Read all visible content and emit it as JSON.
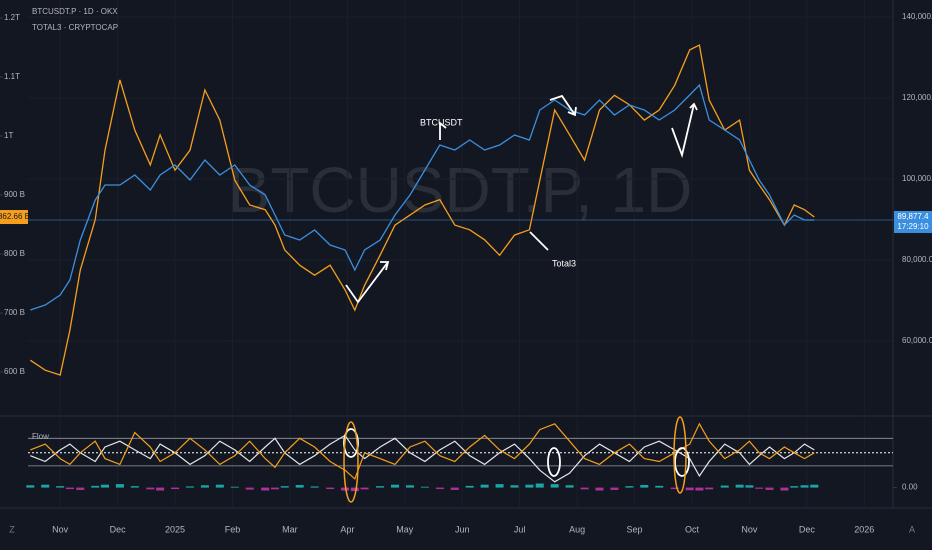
{
  "chart_data": {
    "type": "line",
    "watermark": "BTCUSDT.P, 1D",
    "annotations": [
      "BTCUSDT",
      "Total3"
    ],
    "x": [
      -0.52,
      -0.26,
      0,
      0.17,
      0.35,
      0.61,
      0.78,
      1.04,
      1.3,
      1.57,
      1.74,
      2,
      2.26,
      2.52,
      2.78,
      3.04,
      3.3,
      3.57,
      3.74,
      3.91,
      4.17,
      4.43,
      4.7,
      4.96,
      5.13,
      5.3,
      5.57,
      5.83,
      6.09,
      6.35,
      6.61,
      6.87,
      7.13,
      7.39,
      7.65,
      7.91,
      8.17,
      8.35,
      8.61,
      8.87,
      9.13,
      9.39,
      9.65,
      9.91,
      10.17,
      10.43,
      10.7,
      10.96,
      11.13,
      11.3,
      11.57,
      11.83,
      12,
      12.17,
      12.35,
      12.61,
      12.78,
      12.96,
      13.13
    ],
    "xlim": [
      -0.56,
      14.5
    ],
    "xticks": [
      {
        "value": 0,
        "label": "Nov"
      },
      {
        "value": 1,
        "label": "Dec"
      },
      {
        "value": 2,
        "label": "2025"
      },
      {
        "value": 3,
        "label": "Feb"
      },
      {
        "value": 4,
        "label": "Mar"
      },
      {
        "value": 5,
        "label": "Apr"
      },
      {
        "value": 6,
        "label": "May"
      },
      {
        "value": 7,
        "label": "Jun"
      },
      {
        "value": 8,
        "label": "Jul"
      },
      {
        "value": 9,
        "label": "Aug"
      },
      {
        "value": 10,
        "label": "Sep"
      },
      {
        "value": 11,
        "label": "Oct"
      },
      {
        "value": 12,
        "label": "Nov"
      },
      {
        "value": 13,
        "label": "Dec"
      },
      {
        "value": 14,
        "label": "2026"
      }
    ],
    "ylim": [
      535.6,
      1230.5
    ],
    "yticks": [
      {
        "value": 600,
        "label": "600 B"
      },
      {
        "value": 700,
        "label": "700 B"
      },
      {
        "value": 800,
        "label": "800 B"
      },
      {
        "value": 900,
        "label": "900 B"
      },
      {
        "value": 1000,
        "label": "1T"
      },
      {
        "value": 1100,
        "label": "1.1T"
      },
      {
        "value": 1200,
        "label": "1.2T"
      }
    ],
    "y2lim": [
      42960,
      144200
    ],
    "y2ticks": [
      {
        "value": 60000,
        "label": "60,000.0"
      },
      {
        "value": 80000,
        "label": "80,000.0"
      },
      {
        "value": 100000,
        "label": "100,000.0"
      },
      {
        "value": 120000,
        "label": "120,000.0"
      },
      {
        "value": 140000,
        "label": "140,000.0"
      }
    ],
    "countdown": "17:29:10",
    "series": [
      {
        "name": "TOTAL3 · CRYPTOCAP",
        "color": "#f59f1c",
        "last_label": "862.66 B",
        "values": [
          620,
          603,
          595,
          671,
          773,
          858,
          976,
          1095,
          1010,
          951,
          1002,
          942,
          976,
          1078,
          1027,
          925,
          883,
          875,
          849,
          807,
          781,
          764,
          781,
          739,
          705,
          747,
          798,
          849,
          866,
          883,
          892,
          849,
          841,
          824,
          798,
          832,
          841,
          925,
          1044,
          1002,
          959,
          1044,
          1069,
          1053,
          1027,
          1044,
          1086,
          1146,
          1154,
          1061,
          1010,
          1027,
          942,
          917,
          892,
          849,
          883,
          875,
          862.66
        ]
      },
      {
        "name": "BTCUSDT.P · 1D · OKX",
        "color": "#3b8fdf",
        "axis": "y2",
        "last_label": "89,877.4",
        "values": [
          67650,
          68890,
          71360,
          75060,
          84940,
          94800,
          98520,
          98520,
          100990,
          97280,
          100990,
          103460,
          99750,
          104690,
          100990,
          103460,
          98520,
          96050,
          91110,
          86170,
          84940,
          87410,
          83700,
          82470,
          77530,
          82470,
          84940,
          91110,
          96050,
          102220,
          108400,
          107160,
          109630,
          107160,
          108400,
          110860,
          109630,
          117040,
          119510,
          117040,
          115800,
          119510,
          115800,
          118270,
          117040,
          114570,
          117040,
          120740,
          123210,
          114570,
          112100,
          109630,
          104690,
          99750,
          96050,
          88640,
          91110,
          89880,
          89877.4
        ]
      }
    ],
    "oscillator": {
      "title": "Flow",
      "ylim": [
        -0.6,
        2.4
      ],
      "yticks": [
        {
          "value": 0,
          "label": "0.00"
        }
      ],
      "levels": [
        1.7,
        0.75
      ],
      "midline": 1.2,
      "series": [
        {
          "color": "#e6e6e6",
          "values": [
            1.1,
            0.9,
            1.3,
            1.5,
            1.2,
            0.9,
            1.4,
            1.6,
            1.3,
            1.0,
            1.5,
            1.2,
            0.8,
            1.1,
            1.6,
            1.3,
            0.9,
            1.4,
            1.7,
            1.2,
            0.8,
            1.1,
            1.5,
            1.8,
            1.3,
            1.0,
            1.4,
            1.7,
            1.2,
            0.9,
            1.3,
            1.6,
            1.1,
            0.8,
            1.2,
            1.5,
            1.0,
            0.6,
            0.2,
            0.5,
            1.1,
            1.5,
            1.2,
            0.9,
            1.4,
            1.6,
            1.3,
            1.0,
            0.4,
            0.9,
            1.5,
            1.2,
            0.8,
            1.1,
            1.4,
            1.0,
            1.2,
            1.5,
            1.3
          ]
        },
        {
          "color": "#f59f1c",
          "values": [
            1.3,
            1.5,
            1.0,
            0.8,
            1.2,
            1.6,
            1.0,
            0.8,
            1.9,
            1.4,
            0.9,
            1.2,
            1.7,
            1.3,
            0.8,
            1.1,
            1.6,
            1.0,
            0.7,
            1.2,
            1.7,
            1.4,
            0.9,
            0.6,
            0.3,
            1.2,
            1.0,
            0.8,
            1.4,
            1.6,
            1.1,
            0.9,
            1.4,
            1.8,
            1.3,
            1.0,
            1.5,
            2.0,
            2.2,
            1.6,
            1.0,
            0.8,
            1.2,
            1.5,
            1.0,
            0.9,
            1.2,
            1.5,
            2.2,
            1.6,
            1.0,
            1.3,
            1.6,
            1.2,
            1.0,
            1.4,
            1.2,
            1.0,
            1.2
          ]
        }
      ],
      "histogram": {
        "pos_color": "#1aa6a6",
        "neg_color": "#b0309a",
        "values": [
          0.08,
          0.1,
          0.05,
          -0.05,
          -0.08,
          0.06,
          0.1,
          0.12,
          0.05,
          -0.06,
          -0.1,
          -0.05,
          0.04,
          0.08,
          0.1,
          0.03,
          -0.07,
          -0.1,
          -0.06,
          0.05,
          0.09,
          0.04,
          -0.05,
          -0.1,
          -0.12,
          -0.06,
          0.05,
          0.1,
          0.08,
          0.03,
          -0.05,
          -0.08,
          0.06,
          0.1,
          0.12,
          0.08,
          0.1,
          0.14,
          0.12,
          0.08,
          -0.06,
          -0.1,
          -0.08,
          0.05,
          0.09,
          0.06,
          -0.05,
          -0.09,
          -0.1,
          -0.06,
          0.07,
          0.1,
          0.08,
          -0.04,
          -0.08,
          -0.1,
          0.05,
          0.08,
          0.1
        ]
      }
    }
  }
}
